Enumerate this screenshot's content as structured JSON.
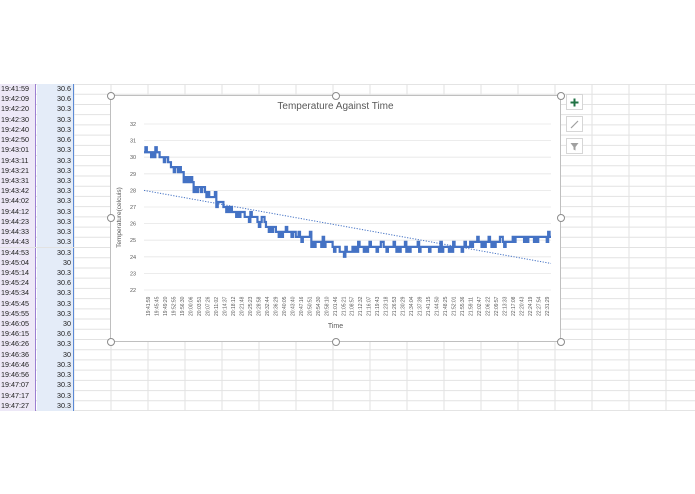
{
  "sheet": {
    "rows": [
      {
        "time": "19:41:59",
        "temp": "30.6"
      },
      {
        "time": "19:42:09",
        "temp": "30.6"
      },
      {
        "time": "19:42:20",
        "temp": "30.3"
      },
      {
        "time": "19:42:30",
        "temp": "30.3"
      },
      {
        "time": "19:42:40",
        "temp": "30.3"
      },
      {
        "time": "19:42:50",
        "temp": "30.6"
      },
      {
        "time": "19:43:01",
        "temp": "30.3"
      },
      {
        "time": "19:43:11",
        "temp": "30.3"
      },
      {
        "time": "19:43:21",
        "temp": "30.3"
      },
      {
        "time": "19:43:31",
        "temp": "30.3"
      },
      {
        "time": "19:43:42",
        "temp": "30.3"
      },
      {
        "time": "19:44:02",
        "temp": "30.3"
      },
      {
        "time": "19:44:12",
        "temp": "30.3"
      },
      {
        "time": "19:44:23",
        "temp": "30.3"
      },
      {
        "time": "19:44:33",
        "temp": "30.3"
      },
      {
        "time": "19:44:43",
        "temp": "30.3"
      },
      {
        "time": "19:44:53",
        "temp": "30.3"
      },
      {
        "time": "19:45:04",
        "temp": "30"
      },
      {
        "time": "19:45:14",
        "temp": "30.3"
      },
      {
        "time": "19:45:24",
        "temp": "30.6"
      },
      {
        "time": "19:45:34",
        "temp": "30.3"
      },
      {
        "time": "19:45:45",
        "temp": "30.3"
      },
      {
        "time": "19:45:55",
        "temp": "30.3"
      },
      {
        "time": "19:46:05",
        "temp": "30"
      },
      {
        "time": "19:46:15",
        "temp": "30.6"
      },
      {
        "time": "19:46:26",
        "temp": "30.3"
      },
      {
        "time": "19:46:36",
        "temp": "30"
      },
      {
        "time": "19:46:46",
        "temp": "30.3"
      },
      {
        "time": "19:46:56",
        "temp": "30.3"
      },
      {
        "time": "19:47:07",
        "temp": "30.3"
      },
      {
        "time": "19:47:17",
        "temp": "30.3"
      },
      {
        "time": "19:47:27",
        "temp": "30.3"
      }
    ]
  },
  "chart_tools": {
    "add_elements_icon": "plus-icon",
    "styles_icon": "brush-icon",
    "filter_icon": "filter-icon",
    "accent_color": "#217346"
  },
  "chart_data": {
    "type": "line",
    "title": "Temperature Against Time",
    "xlabel": "Time",
    "ylabel": "Temperature(celcuis)",
    "ylim": [
      22,
      32
    ],
    "yticks": [
      22,
      23,
      24,
      25,
      26,
      27,
      28,
      29,
      30,
      31,
      32
    ],
    "grid": true,
    "legend": "none",
    "series_color": "#4472c4",
    "categories": [
      "19:41:59",
      "19:45:45",
      "19:49:20",
      "19:52:55",
      "19:56:30",
      "20:00:06",
      "20:03:51",
      "20:07:26",
      "20:11:02",
      "20:14:37",
      "20:18:12",
      "20:21:48",
      "20:25:23",
      "20:28:58",
      "20:32:44",
      "20:36:29",
      "20:40:05",
      "20:43:40",
      "20:47:16",
      "20:50:51",
      "20:54:30",
      "20:58:10",
      "21:01:46",
      "21:05:21",
      "21:08:57",
      "21:12:32",
      "21:16:07",
      "21:19:43",
      "21:23:18",
      "21:26:53",
      "21:30:29",
      "21:34:04",
      "21:37:39",
      "21:41:15",
      "21:44:50",
      "21:48:25",
      "21:52:01",
      "21:55:36",
      "21:59:11",
      "22:02:47",
      "22:06:22",
      "22:09:57",
      "22:13:33",
      "22:17:08",
      "22:20:43",
      "22:24:19",
      "22:27:54",
      "22:31:29"
    ],
    "series": [
      {
        "name": "Temperature",
        "values": [
          30.5,
          30.3,
          30.1,
          29.6,
          29.2,
          28.8,
          28.2,
          27.9,
          27.6,
          27.2,
          26.9,
          26.7,
          26.5,
          26.3,
          26.0,
          25.7,
          25.5,
          25.5,
          25.3,
          25.1,
          25.0,
          24.9,
          24.8,
          24.4,
          24.4,
          24.5,
          24.6,
          24.6,
          24.6,
          24.6,
          24.6,
          24.6,
          24.6,
          24.6,
          24.6,
          24.6,
          24.7,
          24.7,
          24.7,
          24.9,
          25.0,
          25.0,
          25.0,
          25.0,
          25.1,
          25.1,
          25.1,
          25.1
        ]
      },
      {
        "name": "Linear trendline",
        "style": "dotted",
        "values_endpoints": [
          28.0,
          23.6
        ]
      }
    ]
  }
}
